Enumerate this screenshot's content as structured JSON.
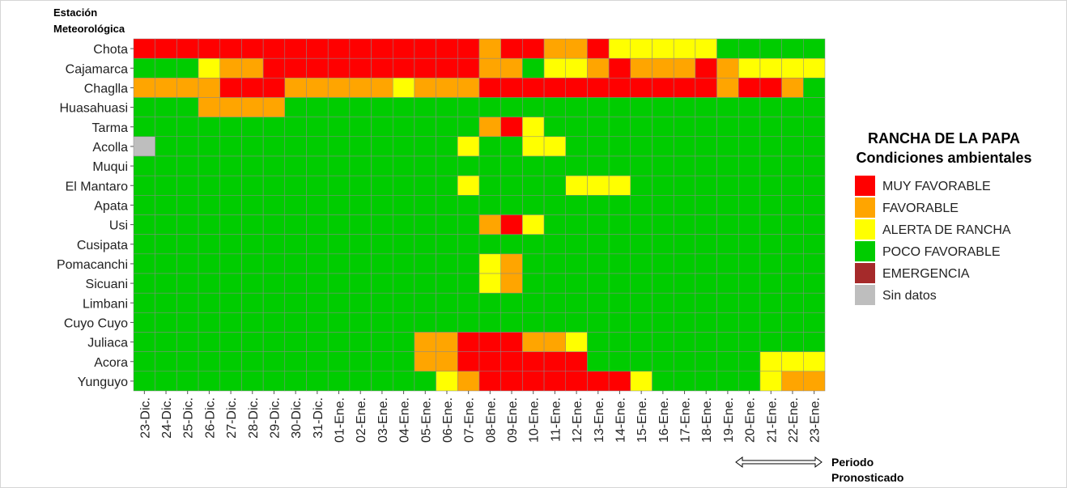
{
  "chart_data": {
    "type": "heatmap",
    "y_title_lines": [
      "Estación",
      "Meteorológica"
    ],
    "rows": [
      "Chota",
      "Cajamarca",
      "Chaglla",
      "Huasahuasi",
      "Tarma",
      "Acolla",
      "Muqui",
      "El Mantaro",
      "Apata",
      "Usi",
      "Cusipata",
      "Pomacanchi",
      "Sicuani",
      "Limbani",
      "Cuyo Cuyo",
      "Juliaca",
      "Acora",
      "Yunguyo"
    ],
    "columns": [
      "23-Dic.",
      "24-Dic.",
      "25-Dic.",
      "26-Dic.",
      "27-Dic.",
      "28-Dic.",
      "29-Dic.",
      "30-Dic.",
      "31-Dic.",
      "01-Ene.",
      "02-Ene.",
      "03-Ene.",
      "04-Ene.",
      "05-Ene.",
      "06-Ene.",
      "07-Ene.",
      "08-Ene.",
      "09-Ene.",
      "10-Ene.",
      "11-Ene.",
      "12-Ene.",
      "13-Ene.",
      "14-Ene.",
      "15-Ene.",
      "16-Ene.",
      "17-Ene.",
      "18-Ene.",
      "19-Ene.",
      "20-Ene.",
      "21-Ene.",
      "22-Ene.",
      "23-Ene."
    ],
    "category_codes": {
      "M": "MUY FAVORABLE",
      "F": "FAVORABLE",
      "A": "ALERTA DE RANCHA",
      "P": "POCO FAVORABLE",
      "E": "EMERGENCIA",
      "S": "Sin datos"
    },
    "values": [
      "MMMMMMMMMMMMMMMMFMMFFMAAAAAPPPPP",
      "PPPAFFMMMMMMMMMMFFPAAFMFFFMFAAAA",
      "FFFFMMMFFFFFAFFFMMMMMMMMMMMFMMFP",
      "PPPFFFFPPPPPPPPPPPPPPPPPPPPPPPPP",
      "PPPPPPPPPPPPPPPPFMAPPPPPPPPPPPPP",
      "SPPPPPPPPPPPPPPAPPAAPPPPPPPPPPPP",
      "PPPPPPPPPPPPPPPPPPPPPPPPPPPPPPPP",
      "PPPPPPPPPPPPPPPAPPPPAAAPPPPPPPPP",
      "PPPPPPPPPPPPPPPPPPPPPPPPPPPPPPPP",
      "PPPPPPPPPPPPPPPPFMAPPPPPPPPPPPPP",
      "PPPPPPPPPPPPPPPPPPPPPPPPPPPPPPPP",
      "PPPPPPPPPPPPPPPPAFPPPPPPPPPPPPPP",
      "PPPPPPPPPPPPPPPPAFPPPPPPPPPPPPPP",
      "PPPPPPPPPPPPPPPPPPPPPPPPPPPPPPPP",
      "PPPPPPPPPPPPPPPPPPPPPPPPPPPPPPPP",
      "PPPPPPPPPPPPPFFMMMFFAPPPPPPPPPPP",
      "PPPPPPPPPPPPPFFMMMMMMPPPPPPPPAAA",
      "PPPPPPPPPPPPPPAFMMMMMMMAPPPPPAFF"
    ],
    "legend": {
      "title": "RANCHA DE LA PAPA",
      "subtitle": "Condiciones ambientales",
      "items": [
        {
          "label": "MUY FAVORABLE",
          "color": "#ff0000"
        },
        {
          "label": "FAVORABLE",
          "color": "#ffa500"
        },
        {
          "label": "ALERTA DE RANCHA",
          "color": "#ffff00"
        },
        {
          "label": "POCO FAVORABLE",
          "color": "#00cc00"
        },
        {
          "label": "EMERGENCIA",
          "color": "#a52a2a"
        },
        {
          "label": "Sin datos",
          "color": "#bebebe"
        }
      ]
    },
    "colors": {
      "M": "#ff0000",
      "F": "#ffa500",
      "A": "#ffff00",
      "P": "#00cc00",
      "E": "#a52a2a",
      "S": "#bebebe"
    },
    "forecast_label_lines": [
      "Periodo",
      "Pronosticado"
    ],
    "forecast_columns": [
      "20-Ene.",
      "23-Ene."
    ]
  }
}
